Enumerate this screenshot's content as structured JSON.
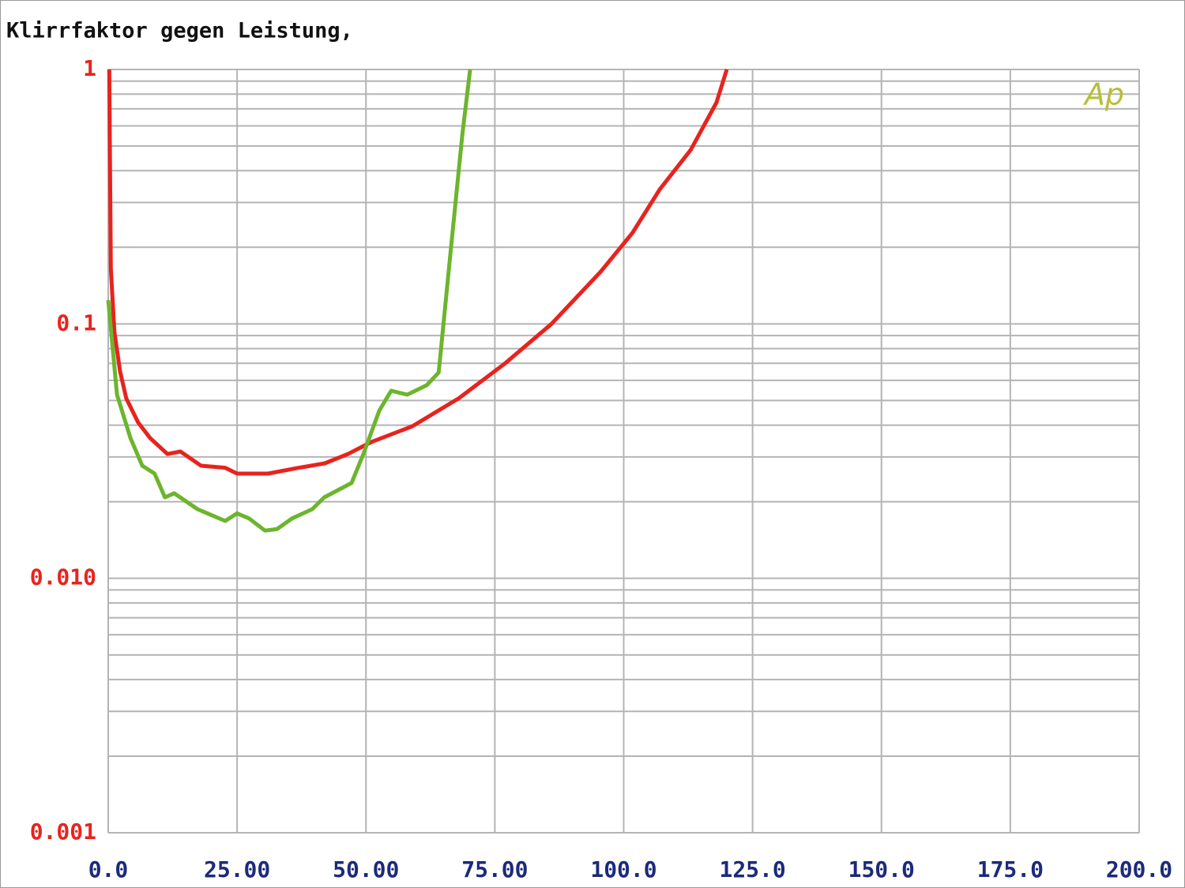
{
  "chart_data": {
    "type": "line",
    "title": "Klirrfaktor gegen Leistung,",
    "annotation": "Ap",
    "log_y": true,
    "grid": true,
    "xlim": [
      0,
      200
    ],
    "ylim": [
      0.001,
      1
    ],
    "xticks": [
      {
        "value": 0,
        "label": "0.0"
      },
      {
        "value": 25,
        "label": "25.00"
      },
      {
        "value": 50,
        "label": "50.00"
      },
      {
        "value": 75,
        "label": "75.00"
      },
      {
        "value": 100,
        "label": "100.0"
      },
      {
        "value": 125,
        "label": "125.0"
      },
      {
        "value": 150,
        "label": "150.0"
      },
      {
        "value": 175,
        "label": "175.0"
      },
      {
        "value": 200,
        "label": "200.0"
      }
    ],
    "yticks": [
      0.001,
      {
        "value": 0.01,
        "label": "0.010"
      },
      0.1,
      1
    ],
    "series": [
      {
        "color": "#e8231e",
        "x": [
          0.2,
          0.5,
          1.2,
          2.3,
          3.5,
          5.8,
          8.1,
          11.5,
          14,
          18,
          22.7,
          25,
          31,
          37,
          42,
          46.5,
          51,
          59,
          68,
          77,
          86,
          95.5,
          101.7,
          107,
          113,
          118,
          120
        ],
        "values": [
          1,
          0.165,
          0.093,
          0.065,
          0.051,
          0.041,
          0.0356,
          0.0308,
          0.0315,
          0.0277,
          0.0272,
          0.0258,
          0.0258,
          0.0272,
          0.0283,
          0.0308,
          0.0343,
          0.0396,
          0.051,
          0.07,
          0.1,
          0.16,
          0.228,
          0.338,
          0.483,
          0.741,
          1
        ]
      },
      {
        "color": "#6cb52d",
        "x": [
          0,
          1.7,
          4.3,
          6.6,
          9,
          11,
          12.8,
          17.3,
          22.7,
          25,
          27.3,
          30.4,
          32.7,
          35.7,
          39.6,
          41.9,
          47.2,
          49.5,
          52.6,
          54.9,
          58,
          61.8,
          64.1,
          66.4,
          68.7,
          70.2
        ],
        "values": [
          0.124,
          0.0527,
          0.0356,
          0.0277,
          0.0258,
          0.0208,
          0.0216,
          0.0187,
          0.0168,
          0.018,
          0.0172,
          0.0154,
          0.0156,
          0.0172,
          0.0187,
          0.0208,
          0.0237,
          0.0308,
          0.0457,
          0.0546,
          0.0527,
          0.0574,
          0.0644,
          0.191,
          0.557,
          1
        ]
      }
    ]
  }
}
